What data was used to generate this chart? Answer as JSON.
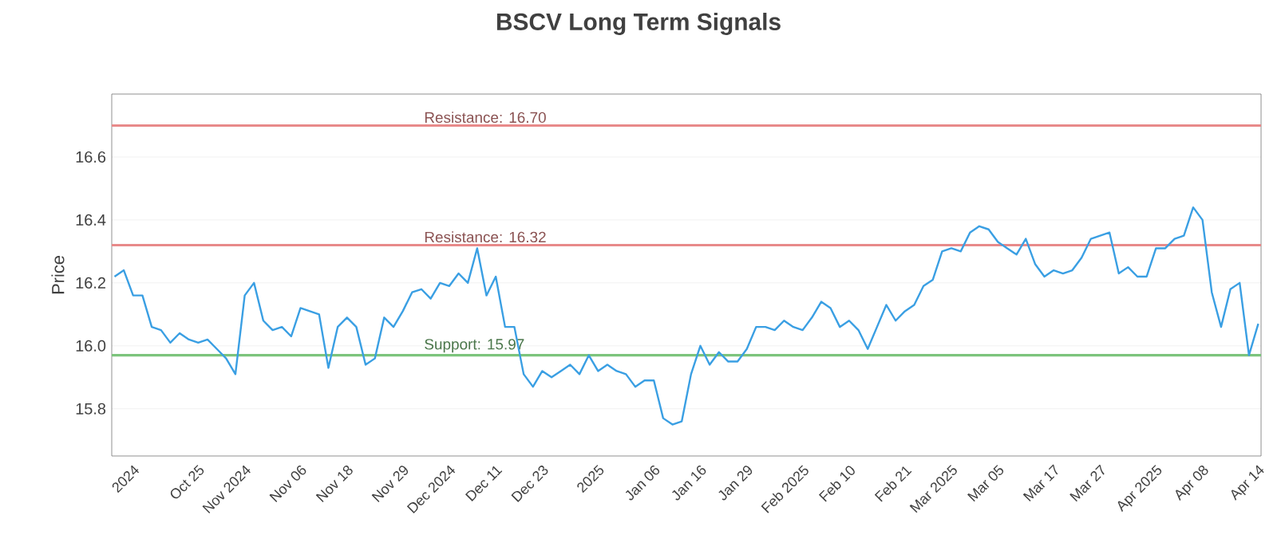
{
  "chart_data": {
    "type": "line",
    "title": "BSCV Long Term Signals",
    "ylabel": "Price",
    "categories": [
      null,
      null,
      "2024",
      null,
      null,
      null,
      null,
      null,
      null,
      "Oct 25",
      null,
      null,
      null,
      null,
      "Nov 2024",
      null,
      null,
      null,
      null,
      null,
      "Nov 06",
      null,
      null,
      null,
      null,
      "Nov 18",
      null,
      null,
      null,
      null,
      null,
      "Nov 29",
      null,
      null,
      null,
      null,
      "Dec 2024",
      null,
      null,
      null,
      null,
      "Dec 11",
      null,
      null,
      null,
      null,
      "Dec 23",
      null,
      null,
      null,
      null,
      null,
      "2025",
      null,
      null,
      null,
      null,
      null,
      "Jan 06",
      null,
      null,
      null,
      null,
      "Jan 16",
      null,
      null,
      null,
      null,
      "Jan 29",
      null,
      null,
      null,
      null,
      null,
      "Feb 2025",
      null,
      null,
      null,
      null,
      "Feb 10",
      null,
      null,
      null,
      null,
      null,
      "Feb 21",
      null,
      null,
      null,
      null,
      "Mar 2025",
      null,
      null,
      null,
      null,
      "Mar 05",
      null,
      null,
      null,
      null,
      null,
      "Mar 17",
      null,
      null,
      null,
      null,
      "Mar 27",
      null,
      null,
      null,
      null,
      null,
      "Apr 2025",
      null,
      null,
      null,
      null,
      "Apr 08",
      null,
      null,
      null,
      null,
      null,
      "Apr 14"
    ],
    "series": [
      {
        "color": "#3a9fe3",
        "values": [
          16.22,
          16.24,
          16.16,
          16.16,
          16.06,
          16.05,
          16.01,
          16.04,
          16.02,
          16.01,
          16.02,
          15.99,
          15.96,
          15.91,
          16.16,
          16.2,
          16.08,
          16.05,
          16.06,
          16.03,
          16.12,
          16.11,
          16.1,
          15.93,
          16.06,
          16.09,
          16.06,
          15.94,
          15.96,
          16.09,
          16.06,
          16.11,
          16.17,
          16.18,
          16.15,
          16.2,
          16.19,
          16.23,
          16.2,
          16.31,
          16.16,
          16.22,
          16.06,
          16.06,
          15.91,
          15.87,
          15.92,
          15.9,
          15.92,
          15.94,
          15.91,
          15.97,
          15.92,
          15.94,
          15.92,
          15.91,
          15.87,
          15.89,
          15.89,
          15.77,
          15.75,
          15.76,
          15.91,
          16.0,
          15.94,
          15.98,
          15.95,
          15.95,
          15.99,
          16.06,
          16.06,
          16.05,
          16.08,
          16.06,
          16.05,
          16.09,
          16.14,
          16.12,
          16.06,
          16.08,
          16.05,
          15.99,
          16.06,
          16.13,
          16.08,
          16.11,
          16.13,
          16.19,
          16.21,
          16.3,
          16.31,
          16.3,
          16.36,
          16.38,
          16.37,
          16.33,
          16.31,
          16.29,
          16.34,
          16.26,
          16.22,
          16.24,
          16.23,
          16.24,
          16.28,
          16.34,
          16.35,
          16.36,
          16.23,
          16.25,
          16.22,
          16.22,
          16.31,
          16.31,
          16.34,
          16.35,
          16.44,
          16.4,
          16.17,
          16.06,
          16.18,
          16.2,
          15.97,
          16.07
        ]
      }
    ],
    "ylim": [
      15.65,
      16.8
    ],
    "yticks": [
      {
        "value": 15.8,
        "label": "15.8"
      },
      {
        "value": 16.0,
        "label": "16.0"
      },
      {
        "value": 16.2,
        "label": "16.2"
      },
      {
        "value": 16.4,
        "label": "16.4"
      },
      {
        "value": 16.6,
        "label": "16.6"
      }
    ],
    "ref_lines": [
      {
        "axis": "y",
        "value": 16.7,
        "label": "Resistance: 16.70",
        "color": "#e88a8a"
      },
      {
        "axis": "y",
        "value": 16.32,
        "label": "Resistance: 16.32",
        "color": "#e88a8a"
      },
      {
        "axis": "y",
        "value": 15.97,
        "label": "Support: 15.97",
        "color": "#7cc47c"
      }
    ],
    "grid": "y",
    "marker": "none",
    "line_style": "solid"
  }
}
